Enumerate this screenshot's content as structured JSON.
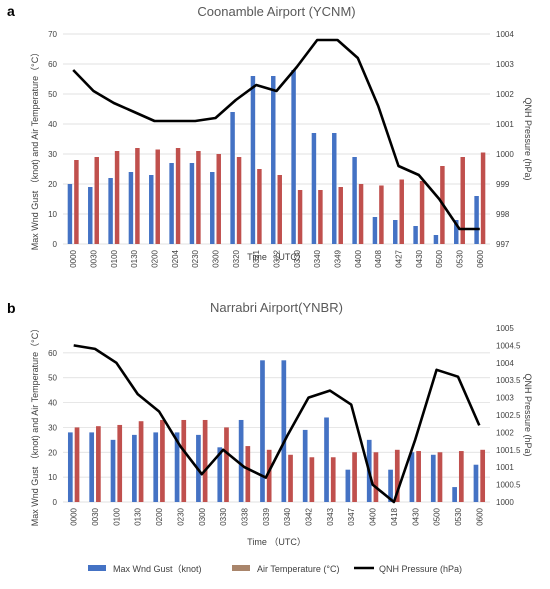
{
  "chart_data": [
    {
      "panel": "a",
      "type": "bar",
      "title": "Coonamble Airport (YCNM)",
      "xlabel": "Time （UTC）",
      "ylabel": "Max Wnd Gust （knot) and Air Temperature（°C）",
      "y2label": "QNH Pressure (hPa)",
      "ylim": [
        0,
        70
      ],
      "yticks": [
        0,
        10,
        20,
        30,
        40,
        50,
        60,
        70
      ],
      "y2lim": [
        997,
        1004
      ],
      "y2ticks": [
        997,
        998,
        999,
        1000,
        1001,
        1002,
        1003,
        1004
      ],
      "grid": true,
      "categories": [
        "0000",
        "0030",
        "0100",
        "0130",
        "0200",
        "0204",
        "0230",
        "0300",
        "0320",
        "0321",
        "0322",
        "0330",
        "0340",
        "0349",
        "0400",
        "0408",
        "0427",
        "0430",
        "0500",
        "0530",
        "0600"
      ],
      "series": [
        {
          "name": "Max Wnd Gust（knot)",
          "axis": "left",
          "kind": "bar",
          "color": "#4472c4",
          "values": [
            20,
            19,
            22,
            24,
            23,
            27,
            27,
            24,
            44,
            56,
            56,
            58,
            37,
            37,
            29,
            9,
            8,
            6,
            3,
            8,
            16
          ]
        },
        {
          "name": "Air Temperature (°C)",
          "axis": "left",
          "kind": "bar",
          "color": "#c0504d",
          "values": [
            28,
            29,
            31,
            32,
            31.5,
            32,
            31,
            30,
            29,
            25,
            23,
            18,
            18,
            19,
            20,
            19.5,
            21.5,
            21,
            26,
            29,
            30.5
          ]
        },
        {
          "name": "QNH Pressure (hPa)",
          "axis": "right",
          "kind": "line",
          "color": "#000000",
          "values": [
            1002.8,
            1002.1,
            1001.7,
            1001.4,
            1001.1,
            1001.1,
            1001.1,
            1001.2,
            1001.8,
            1002.3,
            1002.1,
            1002.9,
            1003.8,
            1003.8,
            1003.2,
            1001.6,
            999.6,
            999.3,
            998.5,
            997.5,
            997.5
          ]
        }
      ]
    },
    {
      "panel": "b",
      "type": "bar",
      "title": "Narrabri Airport(YNBR)",
      "xlabel": "Time （UTC）",
      "ylabel": "Max Wnd Gust （knot) and Air Temperature（°C）",
      "y2label": "QNH Pressure (hPa)",
      "ylim": [
        0,
        70
      ],
      "yticks": [
        0,
        10,
        20,
        30,
        40,
        50,
        60
      ],
      "y2lim": [
        1000,
        1005
      ],
      "y2ticks": [
        1000,
        1000.5,
        1001,
        1001.5,
        1002,
        1002.5,
        1003,
        1003.5,
        1004,
        1004.5,
        1005
      ],
      "grid": true,
      "categories": [
        "0000",
        "0030",
        "0100",
        "0130",
        "0200",
        "0230",
        "0300",
        "0330",
        "0338",
        "0339",
        "0340",
        "0342",
        "0343",
        "0347",
        "0400",
        "0418",
        "0430",
        "0500",
        "0530",
        "0600"
      ],
      "series": [
        {
          "name": "Max Wnd Gust（knot)",
          "axis": "left",
          "kind": "bar",
          "color": "#4472c4",
          "values": [
            28,
            28,
            25,
            27,
            28,
            28,
            27,
            22,
            33,
            57,
            57,
            29,
            34,
            13,
            25,
            13,
            20,
            19,
            6,
            15
          ]
        },
        {
          "name": "Air Temperature (°C)",
          "axis": "left",
          "kind": "bar",
          "color": "#c0504d",
          "values": [
            30,
            30.5,
            31,
            32.5,
            33,
            33,
            33,
            30,
            22.5,
            21,
            19,
            18,
            18,
            20,
            20,
            21,
            20.5,
            20,
            20.5,
            21
          ]
        },
        {
          "name": "QNH Pressure (hPa)",
          "axis": "right",
          "kind": "line",
          "color": "#000000",
          "values": [
            1004.5,
            1004.4,
            1004,
            1003.1,
            1002.6,
            1001.6,
            1000.8,
            1001.5,
            1001,
            1000.7,
            1001.9,
            1003,
            1003.2,
            1002.8,
            1000.5,
            1000,
            1001.8,
            1003.8,
            1003.6,
            1002.2
          ]
        }
      ]
    }
  ],
  "legend": {
    "position": "bottom",
    "items": [
      {
        "label": "Max Wnd Gust（knot)",
        "kind": "bar",
        "color": "#4472c4"
      },
      {
        "label": "Air Temperature (°C)",
        "kind": "bar",
        "color": "#a9856b"
      },
      {
        "label": "QNH Pressure (hPa)",
        "kind": "line",
        "color": "#000000"
      }
    ]
  }
}
